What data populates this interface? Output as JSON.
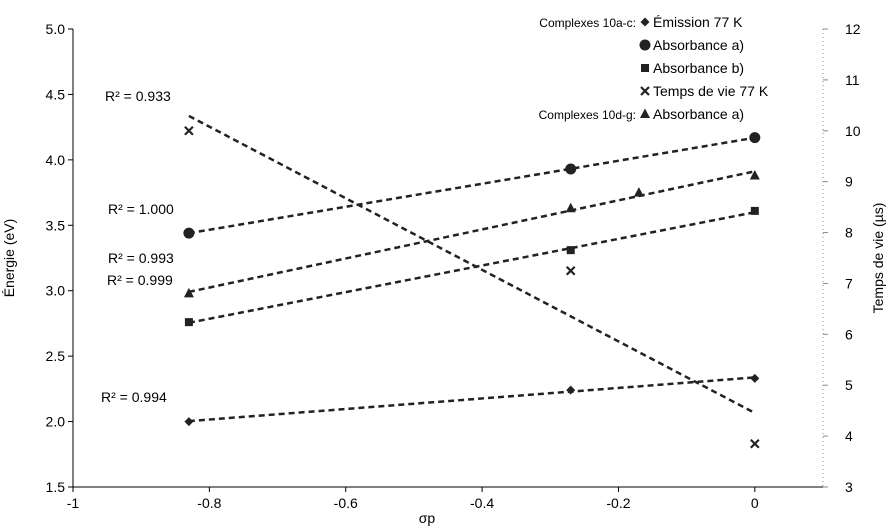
{
  "chart_data": {
    "type": "scatter",
    "xlabel": "σp",
    "ylabel": "Énergie (eV)",
    "y2label": "Temps de vie (µs)",
    "xlim": [
      -1,
      0.1
    ],
    "ylim": [
      1.5,
      5.0
    ],
    "y2lim": [
      3,
      12
    ],
    "xticks": [
      "-1",
      "-0.8",
      "-0.6",
      "-0.4",
      "-0.2",
      "0"
    ],
    "yticks": [
      "1.5",
      "2.0",
      "2.5",
      "3.0",
      "3.5",
      "4.0",
      "4.5",
      "5.0"
    ],
    "y2ticks": [
      "3",
      "4",
      "5",
      "6",
      "7",
      "8",
      "9",
      "10",
      "11",
      "12"
    ],
    "legend_position": "top-right",
    "legend_groups": [
      {
        "label": "Complexes 10a-c:",
        "series_index": 0
      },
      {
        "label": "Complexes 10d-g:",
        "series_index": 4
      }
    ],
    "series": [
      {
        "name": "Émission 77 K",
        "marker": "diamond",
        "axis": "left",
        "x": [
          -0.83,
          -0.27,
          0
        ],
        "y": [
          2.0,
          2.24,
          2.33
        ],
        "r2": "R² = 0.994"
      },
      {
        "name": "Absorbance a)",
        "marker": "circle",
        "axis": "left",
        "x": [
          -0.83,
          -0.27,
          0
        ],
        "y": [
          3.44,
          3.93,
          4.17
        ],
        "r2": "R² = 1.000"
      },
      {
        "name": "Absorbance b)",
        "marker": "square",
        "axis": "left",
        "x": [
          -0.83,
          -0.27,
          0
        ],
        "y": [
          2.76,
          3.31,
          3.61
        ],
        "r2": "R² = 0.999"
      },
      {
        "name": "Temps de vie 77 K",
        "marker": "x",
        "axis": "right",
        "x": [
          -0.83,
          -0.27,
          0
        ],
        "y": [
          10.0,
          7.25,
          3.85
        ],
        "r2": "R² = 0.933"
      },
      {
        "name": "Absorbance a)",
        "marker": "triangle",
        "axis": "left",
        "x": [
          -0.83,
          -0.27,
          -0.17,
          0
        ],
        "y": [
          2.98,
          3.63,
          3.75,
          3.88
        ],
        "r2": "R² = 0.993"
      }
    ]
  }
}
